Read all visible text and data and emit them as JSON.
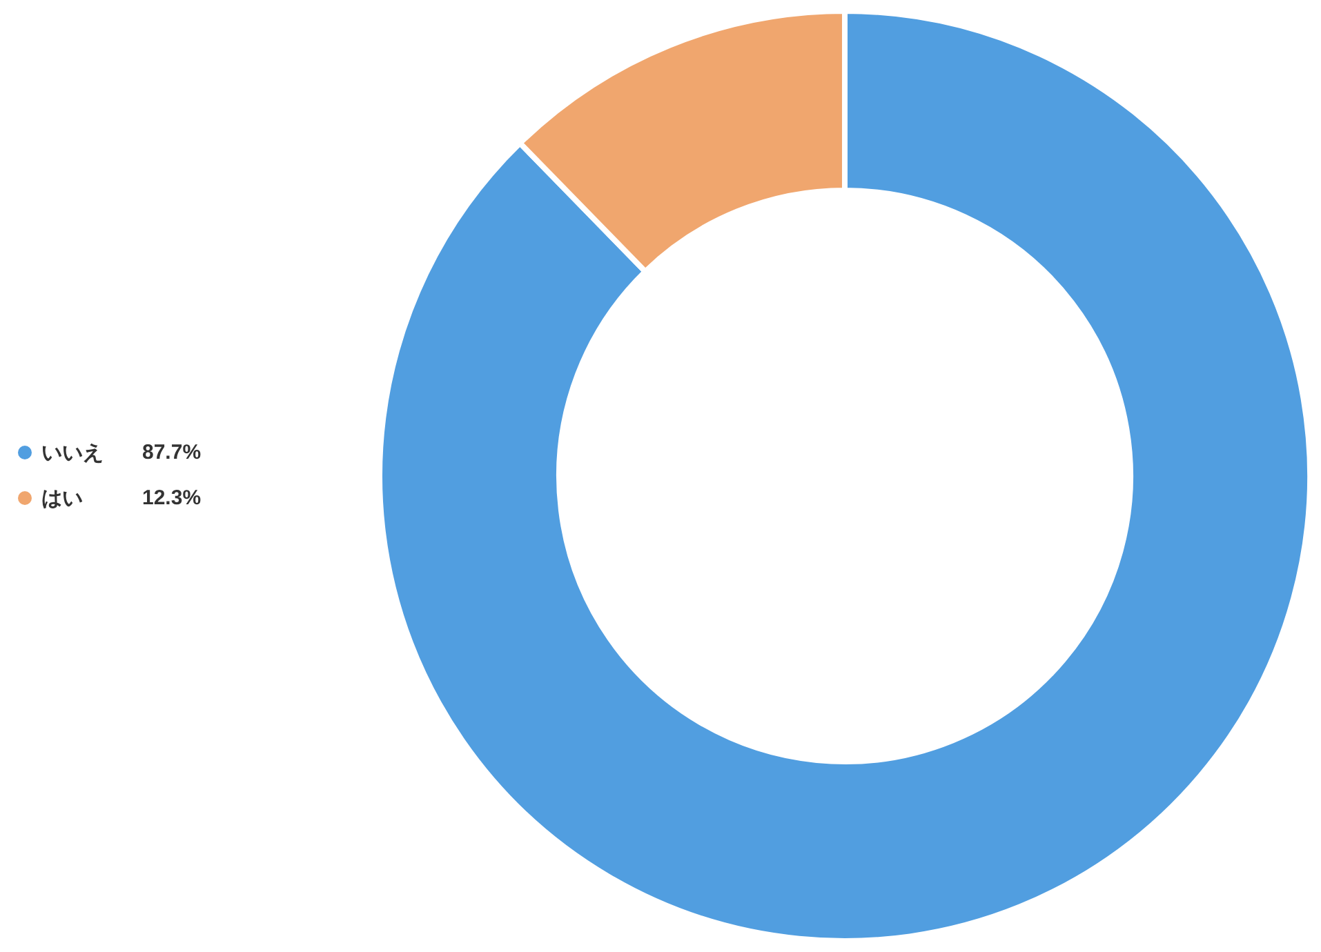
{
  "chart_data": {
    "type": "donut",
    "categories": [
      "いいえ",
      "はい"
    ],
    "values": [
      87.7,
      12.3
    ],
    "colors": [
      "#519ee0",
      "#f0a66e"
    ],
    "legend": "left",
    "value_labels": [
      "87.7%",
      "12.3%"
    ]
  }
}
